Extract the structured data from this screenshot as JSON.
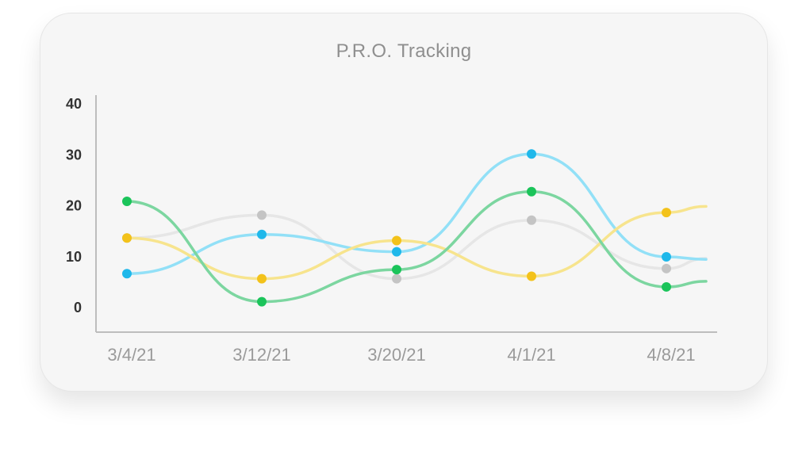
{
  "chart_data": {
    "type": "line",
    "title": "P.R.O. Tracking",
    "categories": [
      "3/4/21",
      "3/12/21",
      "3/20/21",
      "4/1/21",
      "4/8/21"
    ],
    "yticks": [
      0,
      10,
      20,
      30,
      40
    ],
    "ylim": [
      -5,
      41
    ],
    "grid": false,
    "series": [
      {
        "color": "#c4c4c4",
        "line_color": "#e6e6e6",
        "values": [
          13.5,
          18,
          5.5,
          17,
          7.5
        ],
        "tail": 9.5
      },
      {
        "color": "#1fb8ea",
        "line_color": "#92e0f7",
        "values": [
          6.5,
          14.2,
          10.8,
          30,
          9.8
        ],
        "tail": 9.3
      },
      {
        "color": "#f3c21a",
        "line_color": "#f7e48d",
        "values": [
          13.5,
          5.5,
          13,
          6,
          18.5
        ],
        "tail": 19.7
      },
      {
        "color": "#1bc45a",
        "line_color": "#7cd6a0",
        "values": [
          20.7,
          1,
          7.3,
          22.6,
          3.9
        ],
        "tail": 5
      }
    ]
  }
}
